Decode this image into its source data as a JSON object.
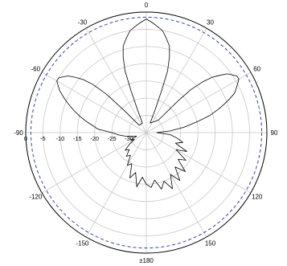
{
  "chart_data": {
    "type": "polar",
    "title": "",
    "angle_ticks": [
      {
        "deg": 0,
        "label": "0"
      },
      {
        "deg": 30,
        "label": "30"
      },
      {
        "deg": 60,
        "label": "60"
      },
      {
        "deg": 90,
        "label": "90"
      },
      {
        "deg": 120,
        "label": "120"
      },
      {
        "deg": 150,
        "label": "150"
      },
      {
        "deg": 180,
        "label": "±180"
      },
      {
        "deg": -150,
        "label": "-150"
      },
      {
        "deg": -120,
        "label": "-120"
      },
      {
        "deg": -90,
        "label": "-90"
      },
      {
        "deg": -60,
        "label": "-60"
      },
      {
        "deg": -30,
        "label": "-30"
      }
    ],
    "radial_ticks": [
      {
        "value": 0,
        "label": "0"
      },
      {
        "value": -5,
        "label": "-5"
      },
      {
        "value": -10,
        "label": "-10"
      },
      {
        "value": -15,
        "label": "-15"
      },
      {
        "value": -20,
        "label": "-20"
      },
      {
        "value": -25,
        "label": "-25"
      },
      {
        "value": -30,
        "label": "-30"
      }
    ],
    "radial_range": [
      -35,
      0
    ],
    "reference_level": -1.5,
    "series": [
      {
        "points": [
          [
            -86,
            -21
          ],
          [
            -82,
            -19
          ],
          [
            -79,
            -17
          ],
          [
            -76,
            -15
          ],
          [
            -73,
            -13
          ],
          [
            -70,
            -11
          ],
          [
            -67,
            -9
          ],
          [
            -64,
            -7
          ],
          [
            -62,
            -6
          ],
          [
            -60,
            -5
          ],
          [
            -58,
            -5
          ],
          [
            -56,
            -6
          ],
          [
            -54,
            -7
          ],
          [
            -52,
            -9
          ],
          [
            -50,
            -11
          ],
          [
            -48,
            -14
          ],
          [
            -46,
            -19
          ],
          [
            -45,
            -26
          ],
          [
            -44,
            -32
          ],
          [
            -22,
            -32
          ],
          [
            -21,
            -28
          ],
          [
            -20,
            -22
          ],
          [
            -19,
            -16
          ],
          [
            -17,
            -12
          ],
          [
            -15,
            -9
          ],
          [
            -12,
            -7
          ],
          [
            -9,
            -5
          ],
          [
            -6,
            -4
          ],
          [
            -3,
            -3
          ],
          [
            0,
            -2
          ],
          [
            3,
            -3
          ],
          [
            6,
            -4
          ],
          [
            9,
            -5
          ],
          [
            12,
            -7
          ],
          [
            15,
            -9
          ],
          [
            17,
            -12
          ],
          [
            19,
            -16
          ],
          [
            20,
            -22
          ],
          [
            21,
            -28
          ],
          [
            22,
            -32
          ],
          [
            44,
            -30
          ],
          [
            45,
            -22
          ],
          [
            46,
            -17
          ],
          [
            48,
            -13
          ],
          [
            50,
            -10
          ],
          [
            52,
            -8
          ],
          [
            54,
            -6
          ],
          [
            56,
            -5
          ],
          [
            58,
            -4
          ],
          [
            60,
            -4
          ],
          [
            62,
            -5
          ],
          [
            64,
            -6
          ],
          [
            66,
            -7
          ],
          [
            68,
            -9
          ],
          [
            70,
            -11
          ],
          [
            72,
            -13
          ],
          [
            75,
            -16
          ],
          [
            78,
            -20
          ],
          [
            82,
            -24
          ],
          [
            86,
            -28
          ],
          [
            90,
            -32
          ],
          [
            95,
            -28
          ],
          [
            100,
            -26
          ],
          [
            105,
            -24
          ],
          [
            110,
            -26
          ],
          [
            115,
            -22
          ],
          [
            120,
            -25
          ],
          [
            125,
            -21
          ],
          [
            130,
            -23
          ],
          [
            135,
            -19
          ],
          [
            140,
            -22
          ],
          [
            145,
            -18
          ],
          [
            150,
            -21
          ],
          [
            155,
            -17
          ],
          [
            160,
            -20
          ],
          [
            165,
            -18
          ],
          [
            170,
            -21
          ],
          [
            175,
            -19
          ],
          [
            180,
            -20
          ],
          [
            -175,
            -22
          ],
          [
            -170,
            -19
          ],
          [
            -165,
            -23
          ],
          [
            -160,
            -21
          ],
          [
            -155,
            -25
          ],
          [
            -150,
            -24
          ],
          [
            -145,
            -27
          ],
          [
            -140,
            -26
          ],
          [
            -135,
            -28
          ],
          [
            -130,
            -27
          ],
          [
            -125,
            -29
          ],
          [
            -120,
            -31
          ],
          [
            -115,
            -30
          ],
          [
            -110,
            -32
          ],
          [
            -105,
            -31
          ],
          [
            -100,
            -29
          ],
          [
            -95,
            -27
          ],
          [
            -90,
            -25
          ],
          [
            -86,
            -21
          ]
        ]
      }
    ]
  }
}
